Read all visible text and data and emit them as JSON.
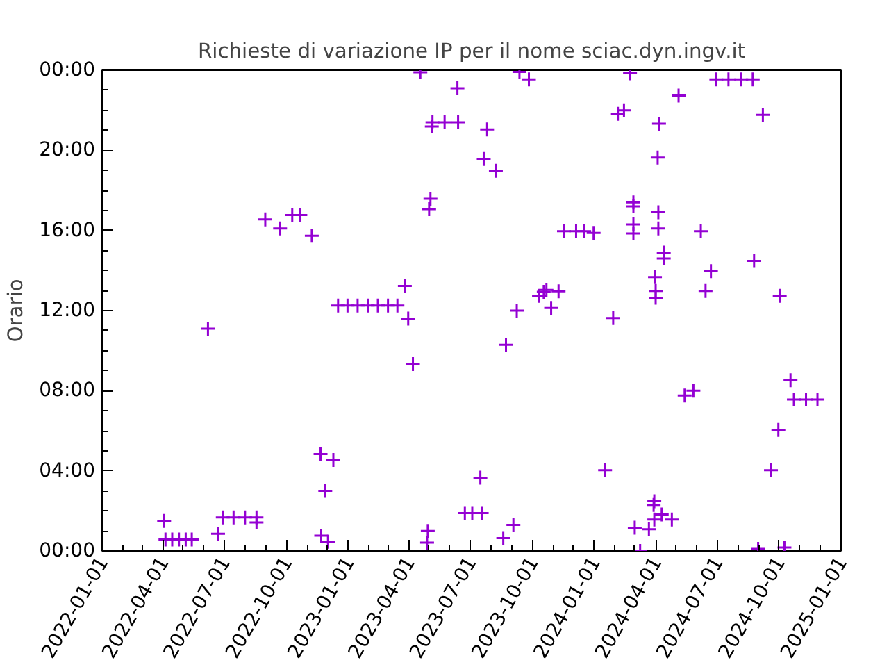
{
  "chart_data": {
    "type": "scatter",
    "title": "Richieste di variazione IP per il nome sciac.dyn.ingv.it",
    "ylabel": "Orario",
    "xlim": [
      "2022-01-01",
      "2025-01-01"
    ],
    "xticks": [
      "2022-01-01",
      "2022-04-01",
      "2022-07-01",
      "2022-10-01",
      "2023-01-01",
      "2023-04-01",
      "2023-07-01",
      "2023-10-01",
      "2024-01-01",
      "2024-04-01",
      "2024-07-01",
      "2024-10-01",
      "2025-01-01"
    ],
    "ylim": [
      0,
      24
    ],
    "yticks": [
      {
        "value": 0,
        "label": "00:00"
      },
      {
        "value": 4,
        "label": "04:00"
      },
      {
        "value": 8,
        "label": "08:00"
      },
      {
        "value": 12,
        "label": "12:00"
      },
      {
        "value": 16,
        "label": "16:00"
      },
      {
        "value": 20,
        "label": "20:00"
      },
      {
        "value": 24,
        "label": "00:00"
      }
    ],
    "grid": false,
    "marker": "cross",
    "series": [
      {
        "color": "#9400d3",
        "x": [
          "2022-04-03",
          "2022-04-05",
          "2022-04-15",
          "2022-04-25",
          "2022-05-05",
          "2022-05-14",
          "2022-06-22",
          "2022-06-29",
          "2022-07-15",
          "2022-08-01",
          "2022-08-18",
          "2022-08-18",
          "2022-06-07",
          "2022-08-31",
          "2022-09-22",
          "2022-10-10",
          "2022-10-22",
          "2022-11-08",
          "2022-11-21",
          "2022-12-10",
          "2022-11-28",
          "2022-11-22",
          "2022-12-02",
          "2022-12-17",
          "2022-12-31",
          "2023-01-15",
          "2023-01-30",
          "2023-02-14",
          "2023-03-01",
          "2023-03-15",
          "2023-03-31",
          "2023-03-26",
          "2023-04-07",
          "2023-04-29",
          "2023-04-28",
          "2023-06-23",
          "2023-07-04",
          "2023-07-18",
          "2023-04-18",
          "2023-05-03",
          "2023-05-01",
          "2023-05-06",
          "2023-05-24",
          "2023-06-13",
          "2023-05-05",
          "2023-06-12",
          "2023-07-26",
          "2023-07-21",
          "2023-08-08",
          "2023-09-12",
          "2023-09-26",
          "2024-02-23",
          "2024-02-14",
          "2024-02-05",
          "2024-04-06",
          "2024-05-05",
          "2024-04-04",
          "2024-06-30",
          "2024-07-18",
          "2024-08-06",
          "2024-08-23",
          "2024-09-07",
          "2024-02-28",
          "2024-02-28",
          "2024-02-28",
          "2024-02-28",
          "2024-04-05",
          "2024-04-05",
          "2023-11-17",
          "2023-12-05",
          "2023-12-17",
          "2023-12-31",
          "2024-06-07",
          "2024-04-13",
          "2024-04-13",
          "2024-06-22",
          "2024-08-25",
          "2024-03-31",
          "2024-04-01",
          "2024-04-01",
          "2024-06-14",
          "2024-10-02",
          "2023-10-11",
          "2023-10-18",
          "2023-10-22",
          "2023-11-09",
          "2023-10-29",
          "2023-09-08",
          "2024-01-29",
          "2023-08-23",
          "2024-10-18",
          "2024-05-14",
          "2024-05-27",
          "2024-10-23",
          "2024-11-10",
          "2024-11-27",
          "2024-09-30",
          "2024-01-17",
          "2024-09-19",
          "2023-07-16",
          "2024-03-30",
          "2024-03-29",
          "2024-03-30",
          "2024-04-10",
          "2024-04-25",
          "2024-03-01",
          "2024-03-22",
          "2023-09-03",
          "2023-08-19",
          "2024-03-09",
          "2024-08-31",
          "2024-10-09"
        ],
        "values": [
          1.5,
          0.57,
          0.57,
          0.57,
          0.57,
          0.57,
          0.86,
          1.67,
          1.67,
          1.67,
          1.67,
          1.42,
          11.1,
          16.55,
          16.1,
          16.77,
          16.77,
          15.74,
          4.84,
          4.54,
          3.0,
          0.76,
          0.46,
          12.25,
          12.25,
          12.25,
          12.25,
          12.25,
          12.25,
          12.25,
          11.6,
          13.23,
          9.33,
          1.0,
          0.42,
          1.89,
          1.89,
          1.89,
          23.9,
          17.58,
          17.06,
          21.4,
          21.4,
          21.4,
          21.19,
          23.1,
          21.04,
          19.57,
          18.98,
          23.91,
          23.54,
          23.84,
          22.0,
          21.82,
          21.33,
          22.73,
          19.64,
          23.54,
          23.54,
          23.54,
          23.54,
          21.77,
          17.4,
          17.2,
          16.3,
          15.85,
          16.91,
          16.1,
          15.96,
          15.96,
          15.96,
          15.88,
          15.96,
          14.9,
          14.6,
          13.97,
          14.48,
          13.67,
          12.98,
          12.64,
          12.98,
          12.74,
          12.74,
          12.94,
          13.03,
          12.96,
          12.13,
          12.0,
          11.63,
          10.29,
          8.52,
          7.76,
          8.0,
          7.56,
          7.56,
          7.56,
          6.04,
          4.03,
          4.03,
          3.66,
          2.48,
          2.3,
          1.57,
          1.82,
          1.57,
          1.16,
          1.08,
          1.3,
          0.64,
          0.0,
          0.1,
          0.17
        ]
      }
    ]
  }
}
